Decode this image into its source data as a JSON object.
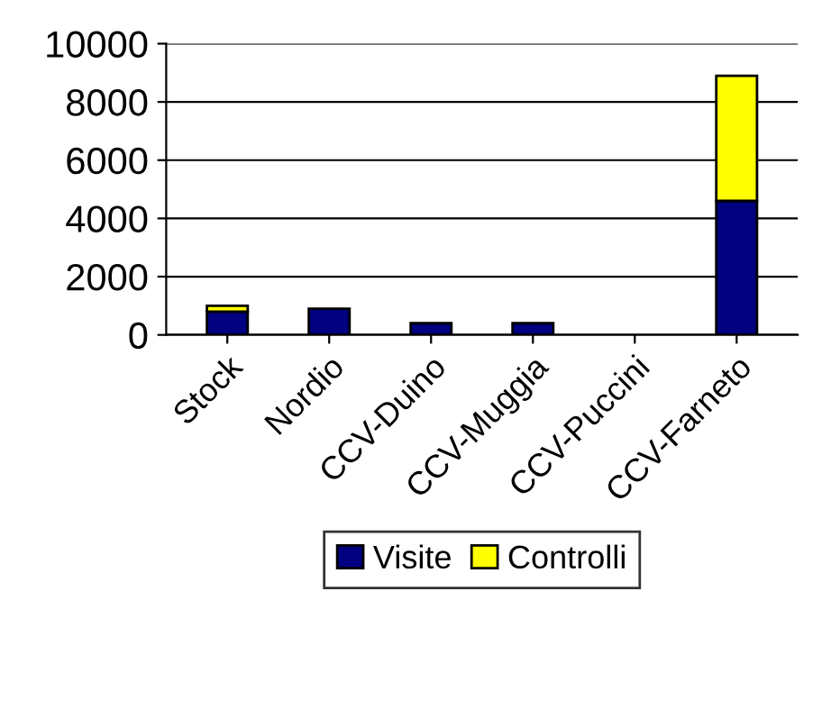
{
  "chart_data": {
    "type": "bar",
    "stacked": true,
    "categories": [
      "Stock",
      "Nordio",
      "CCV-Duino",
      "CCV-Muggia",
      "CCV-Puccini",
      "CCV-Farneto"
    ],
    "series": [
      {
        "name": "Visite",
        "color": "#000080",
        "values": [
          800,
          900,
          400,
          400,
          0,
          4600
        ]
      },
      {
        "name": "Controlli",
        "color": "#ffff00",
        "values": [
          200,
          0,
          0,
          0,
          0,
          4300
        ]
      }
    ],
    "ylim": [
      0,
      10000
    ],
    "yticks": [
      0,
      2000,
      4000,
      6000,
      8000,
      10000
    ],
    "grid": "y",
    "legend": "bottom"
  }
}
